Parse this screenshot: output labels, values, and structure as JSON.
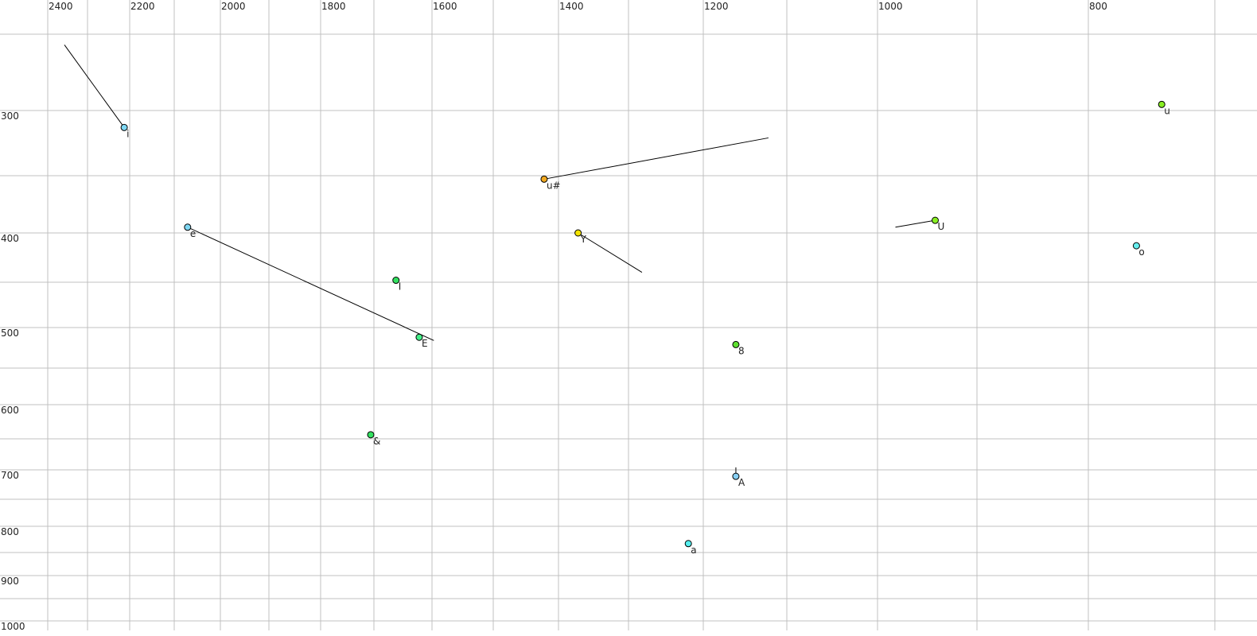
{
  "chart_data": {
    "type": "scatter",
    "title": "",
    "xlabel": "",
    "ylabel": "",
    "x_axis": {
      "reversed": true,
      "position": "top",
      "gridlines": [
        2400,
        2300,
        2200,
        2100,
        2000,
        1900,
        1800,
        1700,
        1600,
        1500,
        1400,
        1300,
        1200,
        1100,
        1000,
        900,
        800,
        700
      ],
      "tick_labels": [
        "2400",
        "2200",
        "2000",
        "1800",
        "1600",
        "1400",
        "1200",
        "1000",
        "800"
      ]
    },
    "y_axis": {
      "position": "left",
      "gridlines": [
        250,
        300,
        350,
        400,
        450,
        500,
        550,
        600,
        650,
        700,
        750,
        800,
        850,
        900,
        950,
        1000
      ],
      "tick_labels": [
        "300",
        "400",
        "500",
        "600",
        "700",
        "800",
        "900",
        "1000"
      ]
    },
    "grid": true,
    "grid_color": "#c0c0c0",
    "points": [
      {
        "label": "i",
        "x": 2213,
        "y": 313,
        "color": "#7fd8f4",
        "trail": [
          2358,
          257
        ]
      },
      {
        "label": "e",
        "x": 2071,
        "y": 395,
        "color": "#7fd8f4",
        "trail": [
          1597,
          516
        ]
      },
      {
        "label": "I",
        "x": 1662,
        "y": 448,
        "color": "#33e060",
        "trail": null
      },
      {
        "label": "E",
        "x": 1622,
        "y": 512,
        "color": "#44ee88",
        "trail": null
      },
      {
        "label": "&",
        "x": 1706,
        "y": 644,
        "color": "#33e060",
        "trail": null
      },
      {
        "label": "u#",
        "x": 1422,
        "y": 353,
        "color": "#f0a820",
        "trail": [
          1122,
          321
        ]
      },
      {
        "label": "Y",
        "x": 1372,
        "y": 400,
        "color": "#f4e400",
        "trail": [
          1282,
          440
        ]
      },
      {
        "label": "8",
        "x": 1161,
        "y": 521,
        "color": "#5ee030",
        "trail": null
      },
      {
        "label": "A",
        "x": 1161,
        "y": 711,
        "color": "#88d0f4",
        "trail": [
          1161,
          696
        ]
      },
      {
        "label": "a",
        "x": 1220,
        "y": 833,
        "color": "#55eeee",
        "trail": null
      },
      {
        "label": "U",
        "x": 942,
        "y": 389,
        "color": "#88ee22",
        "trail": [
          982,
          395
        ]
      },
      {
        "label": "u",
        "x": 742,
        "y": 296,
        "color": "#88ee22",
        "trail": null
      },
      {
        "label": "o",
        "x": 762,
        "y": 413,
        "color": "#66eeee",
        "trail": null
      }
    ]
  }
}
